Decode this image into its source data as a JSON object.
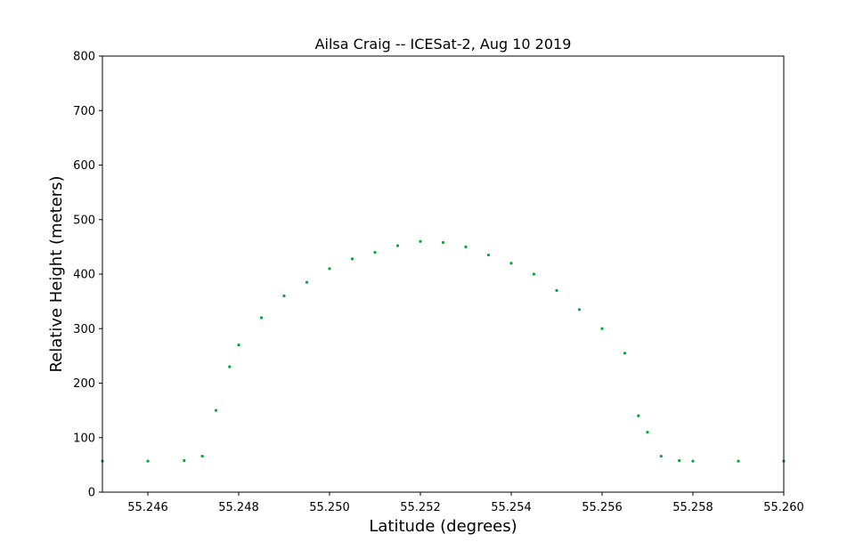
{
  "chart_data": {
    "type": "scatter",
    "title": "Ailsa Craig -- ICESat-2, Aug 10 2019",
    "xlabel": "Latitude (degrees)",
    "ylabel": "Relative Height (meters)",
    "xlim": [
      55.245,
      55.26
    ],
    "ylim": [
      0,
      800
    ],
    "x_ticks": [
      "55.246",
      "55.248",
      "55.250",
      "55.252",
      "55.254",
      "55.256",
      "55.258",
      "55.260"
    ],
    "y_ticks": [
      "0",
      "100",
      "200",
      "300",
      "400",
      "500",
      "600",
      "700",
      "800"
    ],
    "grid": false,
    "point_color": "#00aa33",
    "series": [
      {
        "values": [
          {
            "x": 55.245,
            "y": 57
          },
          {
            "x": 55.246,
            "y": 57
          },
          {
            "x": 55.2468,
            "y": 58
          },
          {
            "x": 55.2472,
            "y": 66
          },
          {
            "x": 55.2475,
            "y": 150
          },
          {
            "x": 55.2478,
            "y": 230
          },
          {
            "x": 55.248,
            "y": 270
          },
          {
            "x": 55.2485,
            "y": 320
          },
          {
            "x": 55.249,
            "y": 360
          },
          {
            "x": 55.2495,
            "y": 385
          },
          {
            "x": 55.25,
            "y": 410
          },
          {
            "x": 55.2505,
            "y": 428
          },
          {
            "x": 55.251,
            "y": 440
          },
          {
            "x": 55.2515,
            "y": 452
          },
          {
            "x": 55.252,
            "y": 460
          },
          {
            "x": 55.2525,
            "y": 458
          },
          {
            "x": 55.253,
            "y": 450
          },
          {
            "x": 55.2535,
            "y": 435
          },
          {
            "x": 55.254,
            "y": 420
          },
          {
            "x": 55.2545,
            "y": 400
          },
          {
            "x": 55.255,
            "y": 370
          },
          {
            "x": 55.2555,
            "y": 335
          },
          {
            "x": 55.256,
            "y": 300
          },
          {
            "x": 55.2565,
            "y": 255
          },
          {
            "x": 55.2568,
            "y": 140
          },
          {
            "x": 55.257,
            "y": 110
          },
          {
            "x": 55.2573,
            "y": 66
          },
          {
            "x": 55.2577,
            "y": 58
          },
          {
            "x": 55.258,
            "y": 57
          },
          {
            "x": 55.259,
            "y": 57
          },
          {
            "x": 55.26,
            "y": 57
          }
        ]
      }
    ]
  }
}
